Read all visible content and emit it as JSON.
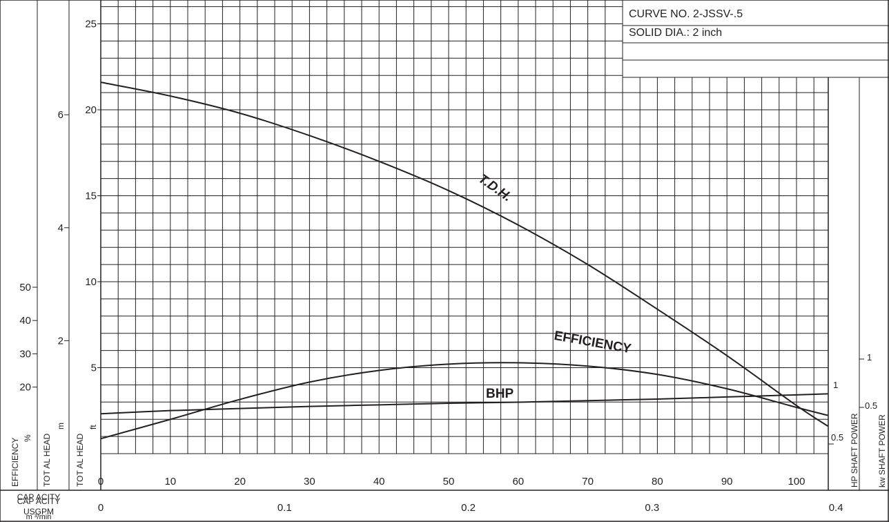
{
  "info_box": {
    "curve_no": "CURVE NO. 2-JSSV-.5",
    "solid_dia": "SOLID DIA.: 2 inch"
  },
  "axes": {
    "efficiency": {
      "label": "EFFICIENCY",
      "unit": "%",
      "ticks": [
        "20",
        "30",
        "40",
        "50"
      ]
    },
    "head_m": {
      "label": "TOT AL HEAD",
      "unit": "m",
      "ticks": [
        "2",
        "4",
        "6"
      ]
    },
    "head_ft": {
      "label": "TOT AL HEAD",
      "unit": "ft",
      "ticks": [
        "5",
        "10",
        "15",
        "20",
        "25"
      ]
    },
    "hp": {
      "label": "HP  SHAFT  POWER",
      "ticks": [
        "0.5",
        "1"
      ]
    },
    "kw": {
      "label": "kw  SHAFT  POWER",
      "ticks": [
        "0.5",
        "1"
      ]
    },
    "usgpm": {
      "label": "CAP ACITY",
      "unit": "USGPM",
      "ticks": [
        "0",
        "10",
        "20",
        "30",
        "40",
        "50",
        "60",
        "70",
        "80",
        "90",
        "100"
      ]
    },
    "m3min": {
      "label": "CAP ACITY",
      "unit": "m ³/min",
      "ticks": [
        "0",
        "0.1",
        "0.2",
        "0.3",
        "0.4"
      ]
    }
  },
  "curve_labels": {
    "tdh": "T.D.H.",
    "efficiency": "EFFICIENCY",
    "bhp": "BHP"
  },
  "colors": {
    "ink": "#231f20",
    "background": "#ffffff"
  },
  "chart_data": {
    "type": "line",
    "x_unit": "USGPM",
    "xlim": [
      0,
      104.5
    ],
    "series": [
      {
        "name": "T.D.H.",
        "y_unit": "ft",
        "x": [
          0,
          10,
          20,
          30,
          40,
          50,
          60,
          70,
          80,
          90,
          100,
          104.5
        ],
        "y": [
          21.6,
          20.8,
          19.8,
          18.5,
          17.0,
          15.3,
          13.3,
          11.0,
          8.4,
          5.7,
          2.8,
          1.6
        ]
      },
      {
        "name": "EFFICIENCY",
        "y_unit": "%",
        "x": [
          0,
          10,
          20,
          30,
          40,
          50,
          60,
          70,
          80,
          90,
          100,
          104.5
        ],
        "y": [
          4.5,
          10.3,
          16.3,
          21.5,
          25.0,
          26.9,
          27.3,
          26.3,
          23.8,
          19.5,
          13.9,
          11.5
        ]
      },
      {
        "name": "BHP",
        "y_unit": "HP",
        "x": [
          0,
          10,
          20,
          30,
          40,
          50,
          60,
          70,
          80,
          90,
          100,
          104.5
        ],
        "y": [
          0.38,
          0.41,
          0.43,
          0.45,
          0.465,
          0.48,
          0.49,
          0.505,
          0.52,
          0.54,
          0.56,
          0.57
        ]
      }
    ],
    "ylim_ft": [
      0,
      25
    ],
    "ylim_m": [
      0,
      7.62
    ],
    "ylim_efficiency_pct": [
      0,
      66
    ]
  }
}
